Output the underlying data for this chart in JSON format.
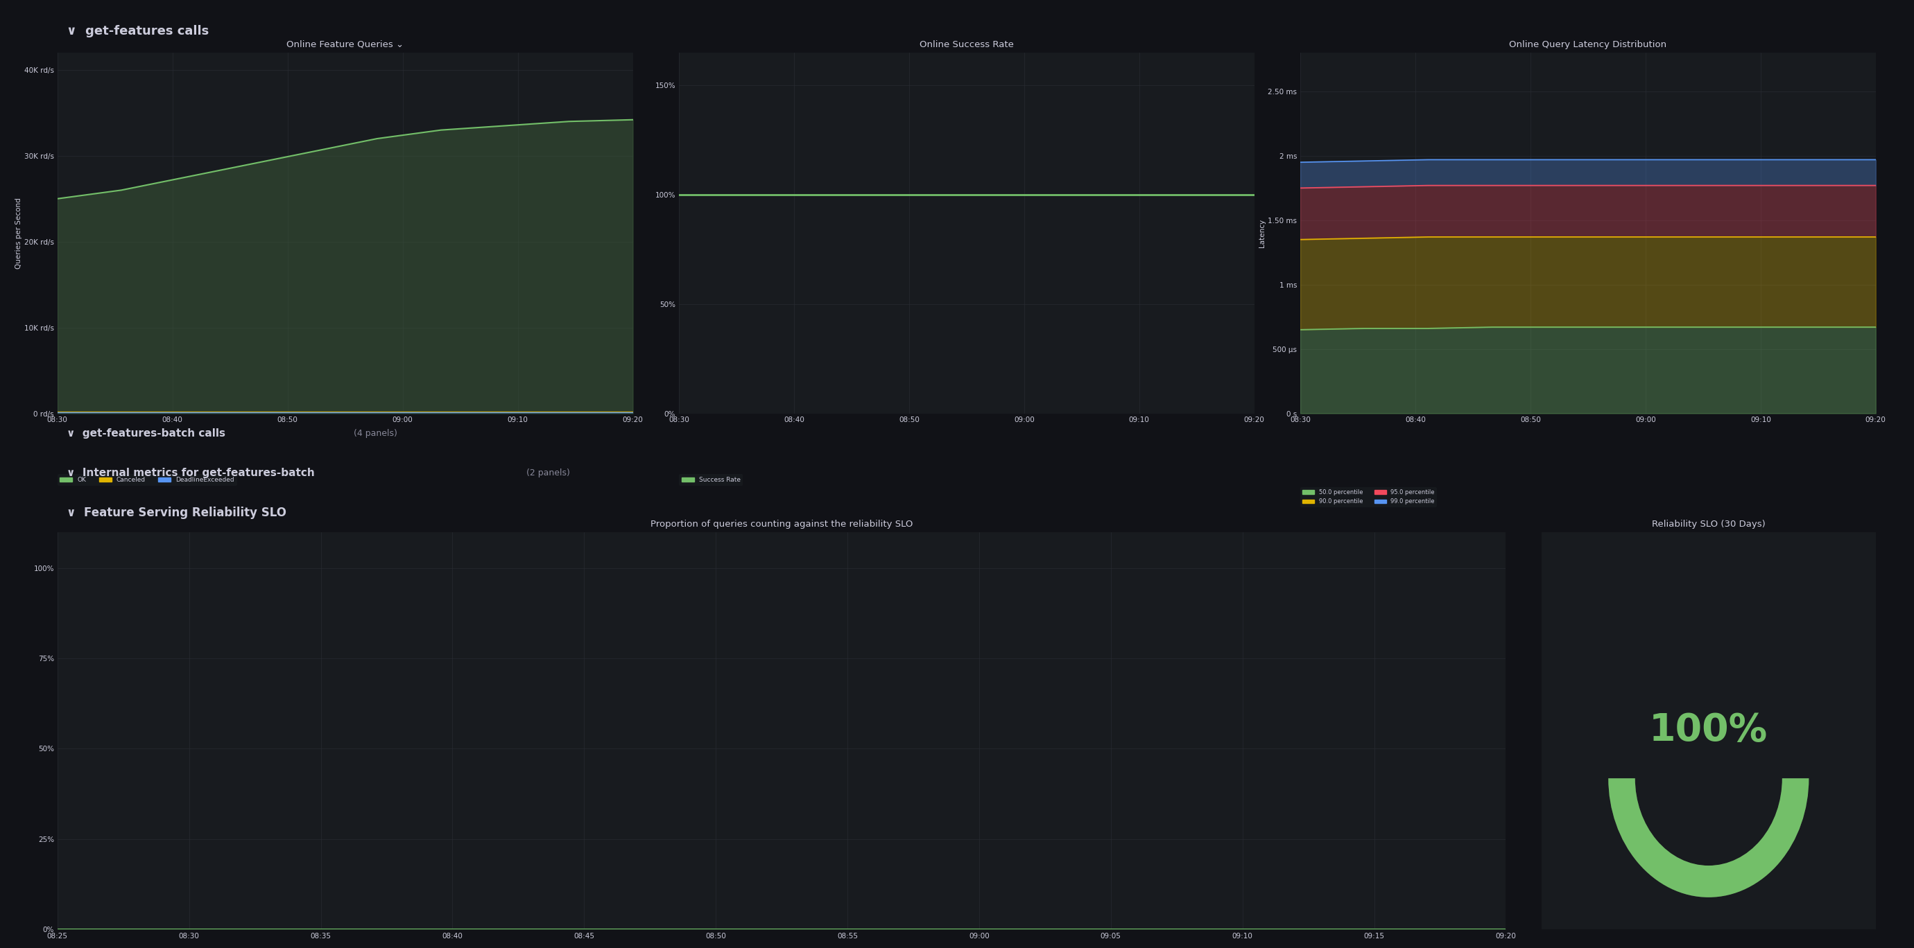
{
  "bg_color": "#111217",
  "panel_bg": "#181b1f",
  "grid_color": "#2a2d35",
  "text_color": "#ccccdc",
  "title_color": "#ccccdc",
  "section1_title": "get-features calls",
  "section2_title": "get-features-batch calls",
  "section2_subtitle": "(4 panels)",
  "section3_title": "Internal metrics for get-features-batch",
  "section3_subtitle": "(2 panels)",
  "section4_title": "Feature Serving Reliability SLO",
  "panel1_title": "Online Feature Queries ⌄",
  "panel1_ylabel": "Queries per Second",
  "panel1_yticks": [
    "0 rd/s",
    "10K rd/s",
    "20K rd/s",
    "30K rd/s",
    "40K rd/s"
  ],
  "panel1_ytick_vals": [
    0,
    10000,
    20000,
    30000,
    40000
  ],
  "panel1_ylim": [
    0,
    42000
  ],
  "panel1_xticks": [
    "08:30",
    "08:40",
    "08:50",
    "09:00",
    "09:10",
    "09:20"
  ],
  "panel1_ok_color": "#73bf69",
  "panel1_ok_fill": "#3d5c3a",
  "panel1_canceled_color": "#e0b400",
  "panel1_deadline_color": "#5794f2",
  "panel1_legend": [
    "OK",
    "Canceled",
    "DeadlineExceeded"
  ],
  "panel1_ok_data": [
    25000,
    26000,
    27500,
    29000,
    30500,
    32000,
    33000,
    33500,
    34000,
    34200
  ],
  "panel1_canceled_data": [
    200,
    200,
    200,
    200,
    200,
    200,
    200,
    200,
    200,
    200
  ],
  "panel1_deadline_data": [
    100,
    100,
    100,
    100,
    100,
    100,
    100,
    100,
    100,
    100
  ],
  "panel2_title": "Online Success Rate",
  "panel2_yticks": [
    "0%",
    "50%",
    "100%",
    "150%"
  ],
  "panel2_ytick_vals": [
    0,
    50,
    100,
    150
  ],
  "panel2_ylim": [
    0,
    165
  ],
  "panel2_xticks": [
    "08:30",
    "08:40",
    "08:50",
    "09:00",
    "09:10",
    "09:20"
  ],
  "panel2_line_color": "#73bf69",
  "panel2_legend": [
    "Success Rate"
  ],
  "panel2_data": [
    100,
    100,
    100,
    100,
    100,
    100,
    100,
    100,
    100,
    100
  ],
  "panel3_title": "Online Query Latency Distribution",
  "panel3_ylabel": "Latency",
  "panel3_yticks": [
    "0 s",
    "500 μs",
    "1 ms",
    "1.50 ms",
    "2 ms",
    "2.50 ms"
  ],
  "panel3_ytick_vals": [
    0,
    0.0005,
    0.001,
    0.0015,
    0.002,
    0.0025
  ],
  "panel3_ylim": [
    0,
    0.0028
  ],
  "panel3_xticks": [
    "08:30",
    "08:40",
    "08:50",
    "09:00",
    "09:10",
    "09:20"
  ],
  "panel3_p50_color": "#73bf69",
  "panel3_p90_color": "#e0b400",
  "panel3_p95_color": "#f2495c",
  "panel3_p99_color": "#5794f2",
  "panel3_legend": [
    "50.0 percentile",
    "90.0 percentile",
    "95.0 percentile",
    "99.0 percentile"
  ],
  "panel3_p50_data": [
    0.00065,
    0.00066,
    0.00066,
    0.00067,
    0.00067,
    0.00067,
    0.00067,
    0.00067,
    0.00067,
    0.00067
  ],
  "panel3_p90_data": [
    0.00135,
    0.00136,
    0.00137,
    0.00137,
    0.00137,
    0.00137,
    0.00137,
    0.00137,
    0.00137,
    0.00137
  ],
  "panel3_p95_data": [
    0.00175,
    0.00176,
    0.00177,
    0.00177,
    0.00177,
    0.00177,
    0.00177,
    0.00177,
    0.00177,
    0.00177
  ],
  "panel3_p99_data": [
    0.00195,
    0.00196,
    0.00197,
    0.00197,
    0.00197,
    0.00197,
    0.00197,
    0.00197,
    0.00197,
    0.00197
  ],
  "panel4_title": "Proportion of queries counting against the reliability SLO",
  "panel4_yticks": [
    "0%",
    "25%",
    "50%",
    "75%",
    "100%"
  ],
  "panel4_ytick_vals": [
    0,
    25,
    50,
    75,
    100
  ],
  "panel4_ylim": [
    0,
    110
  ],
  "panel4_xticks": [
    "08:25",
    "08:30",
    "08:35",
    "08:40",
    "08:45",
    "08:50",
    "08:55",
    "09:00",
    "09:05",
    "09:10",
    "09:15",
    "09:20"
  ],
  "panel4_line_color": "#73bf69",
  "panel4_fill_color": "#2a4a2a",
  "panel4_data": [
    0,
    0,
    0,
    0,
    0,
    0,
    0,
    0,
    0,
    0,
    0,
    0
  ],
  "panel5_title": "Reliability SLO (30 Days)",
  "panel5_value": "100%",
  "panel5_value_color": "#73bf69",
  "panel5_gauge_color": "#73bf69",
  "panel5_gauge_bg": "#333333"
}
